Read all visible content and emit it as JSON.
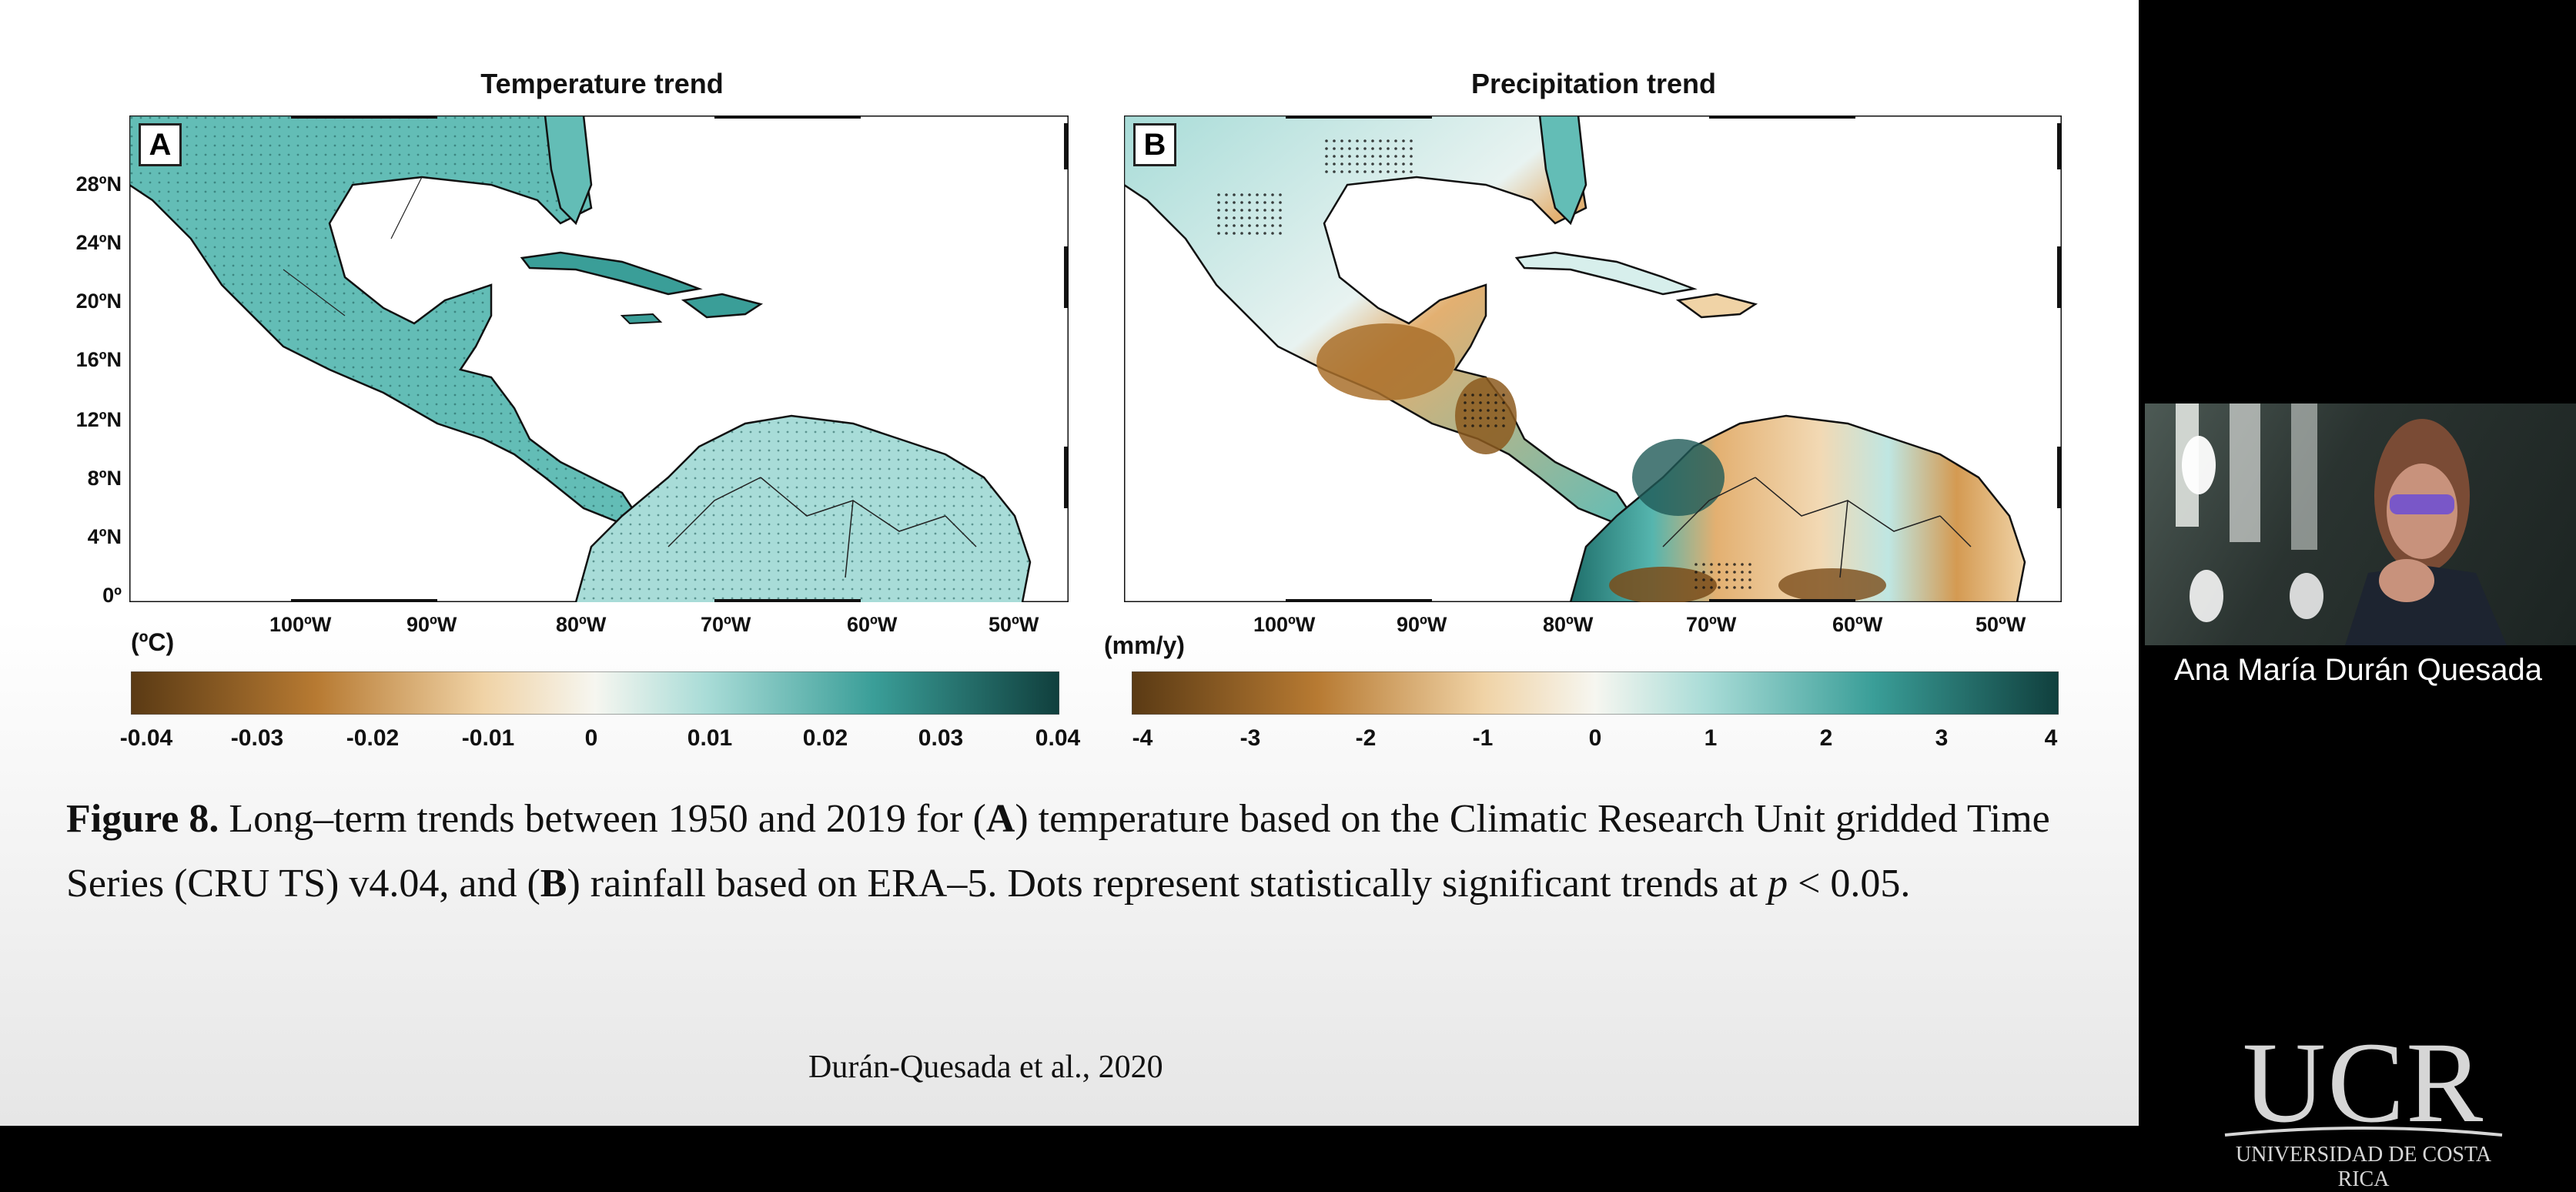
{
  "slide": {
    "panel_a": {
      "title": "Temperature trend",
      "letter": "A",
      "lat_labels": [
        "28ºN",
        "24ºN",
        "20ºN",
        "16ºN",
        "12ºN",
        "8ºN",
        "4ºN",
        "0º"
      ],
      "lon_labels": [
        "100ºW",
        "90ºW",
        "80ºW",
        "70ºW",
        "60ºW",
        "50ºW"
      ],
      "unit": "(ºC)",
      "colorbar_ticks": [
        "-0.04",
        "-0.03",
        "-0.02",
        "-0.01",
        "0",
        "0.01",
        "0.02",
        "0.03",
        "0.04"
      ]
    },
    "panel_b": {
      "title": "Precipitation trend",
      "letter": "B",
      "lon_labels": [
        "100ºW",
        "90ºW",
        "80ºW",
        "70ºW",
        "60ºW",
        "50ºW"
      ],
      "unit": "(mm/y)",
      "colorbar_ticks": [
        "-4",
        "-3",
        "-2",
        "-1",
        "0",
        "1",
        "2",
        "3",
        "4"
      ]
    },
    "caption": {
      "label": "Figure 8.",
      "part1": " Long–term trends between 1950 and 2019 for (",
      "a": "A",
      "part2": ") temperature based on the Climatic Research Unit gridded Time Series (CRU TS) v4.04, and (",
      "b": "B",
      "part3": ") rainfall based on ERA–5. Dots represent statistically significant trends at ",
      "p": "p",
      "part4": " < 0.05."
    },
    "credit": "Durán-Quesada et al., 2020"
  },
  "video": {
    "participant_name": "Ana María Durán Quesada"
  },
  "logo": {
    "letters": "UCR",
    "subtitle": "UNIVERSIDAD DE COSTA RICA"
  },
  "colors": {
    "teal": "#2f8f8a",
    "teal_light": "#a8dcd8",
    "brown": "#8c5a1e",
    "tan": "#e3b071",
    "background": "#000000"
  }
}
